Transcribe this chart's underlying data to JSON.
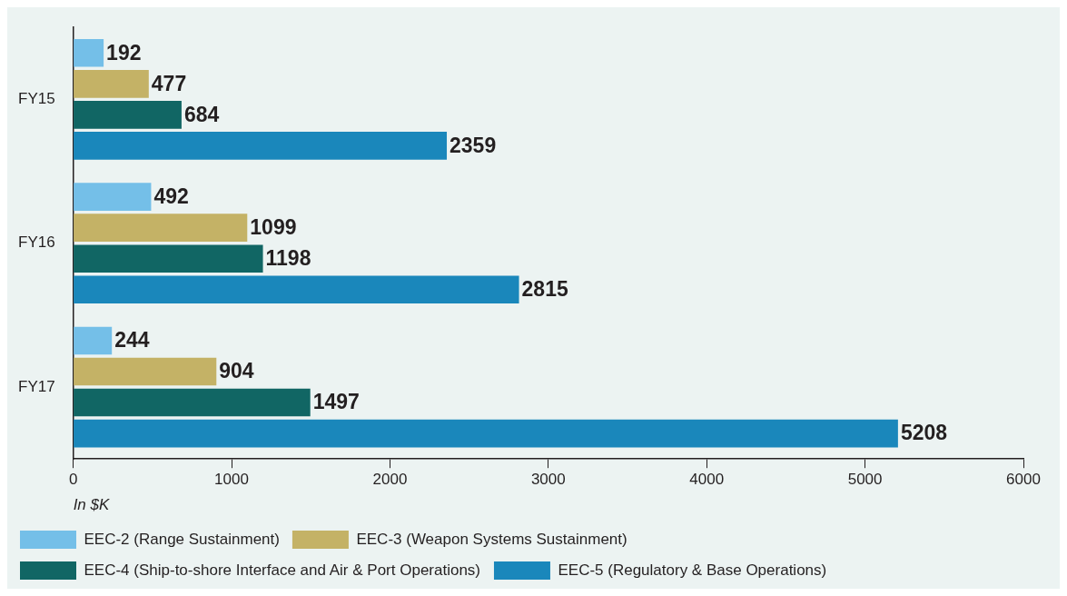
{
  "chart_data": {
    "type": "bar",
    "orientation": "horizontal",
    "categories": [
      "FY15",
      "FY16",
      "FY17"
    ],
    "series": [
      {
        "name": "EEC-2 (Range Sustainment)",
        "color": "#74bfe8",
        "values": [
          192,
          492,
          244
        ]
      },
      {
        "name": "EEC-3 (Weapon Systems Sustainment)",
        "color": "#c4b266",
        "values": [
          477,
          1099,
          904
        ]
      },
      {
        "name": "EEC-4 (Ship-to-shore Interface and Air & Port Operations)",
        "color": "#116664",
        "values": [
          684,
          1198,
          1497
        ]
      },
      {
        "name": "EEC-5 (Regulatory & Base Operations)",
        "color": "#1a87bb",
        "values": [
          2359,
          2815,
          5208
        ]
      }
    ],
    "xlim": [
      0,
      6000
    ],
    "xticks": [
      0,
      1000,
      2000,
      3000,
      4000,
      5000,
      6000
    ],
    "xlabel": "In $K",
    "data_labels": true,
    "grid": false,
    "legend": "bottom"
  }
}
